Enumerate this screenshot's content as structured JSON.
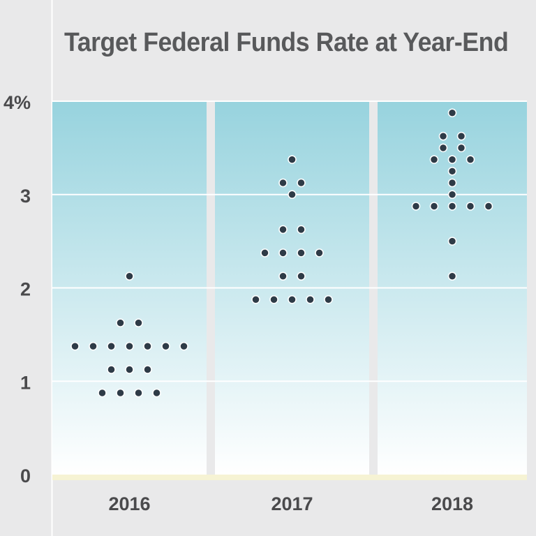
{
  "chart_data": {
    "type": "scatter",
    "title": "Target Federal Funds Rate at Year-End",
    "xlabel": "",
    "ylabel": "",
    "categories": [
      "2016",
      "2017",
      "2018"
    ],
    "y_tick_labels": [
      "0",
      "1",
      "2",
      "3",
      "4%"
    ],
    "ylim": [
      0,
      4
    ],
    "grid": true,
    "dot_step": 0.25,
    "dots": {
      "2016": [
        {
          "y": 2.125,
          "count": 1
        },
        {
          "y": 1.625,
          "count": 2
        },
        {
          "y": 1.375,
          "count": 7
        },
        {
          "y": 1.125,
          "count": 3
        },
        {
          "y": 0.875,
          "count": 4
        }
      ],
      "2017": [
        {
          "y": 3.375,
          "count": 1
        },
        {
          "y": 3.125,
          "count": 2
        },
        {
          "y": 3.0,
          "count": 1
        },
        {
          "y": 2.625,
          "count": 2
        },
        {
          "y": 2.375,
          "count": 4
        },
        {
          "y": 2.125,
          "count": 2
        },
        {
          "y": 1.875,
          "count": 5
        }
      ],
      "2018": [
        {
          "y": 3.875,
          "count": 1
        },
        {
          "y": 3.625,
          "count": 2
        },
        {
          "y": 3.5,
          "count": 2
        },
        {
          "y": 3.375,
          "count": 3
        },
        {
          "y": 3.25,
          "count": 1
        },
        {
          "y": 3.125,
          "count": 1
        },
        {
          "y": 3.0,
          "count": 1
        },
        {
          "y": 2.875,
          "count": 5
        },
        {
          "y": 2.5,
          "count": 1
        },
        {
          "y": 2.125,
          "count": 1
        }
      ]
    },
    "colors": {
      "dot": "#2e3b47",
      "dot_outline": "#ffffff",
      "band_top": "#97d3de",
      "band_bottom": "#ffffff",
      "baseline": "#f6f3d4",
      "background": "#e9e9ea"
    }
  }
}
